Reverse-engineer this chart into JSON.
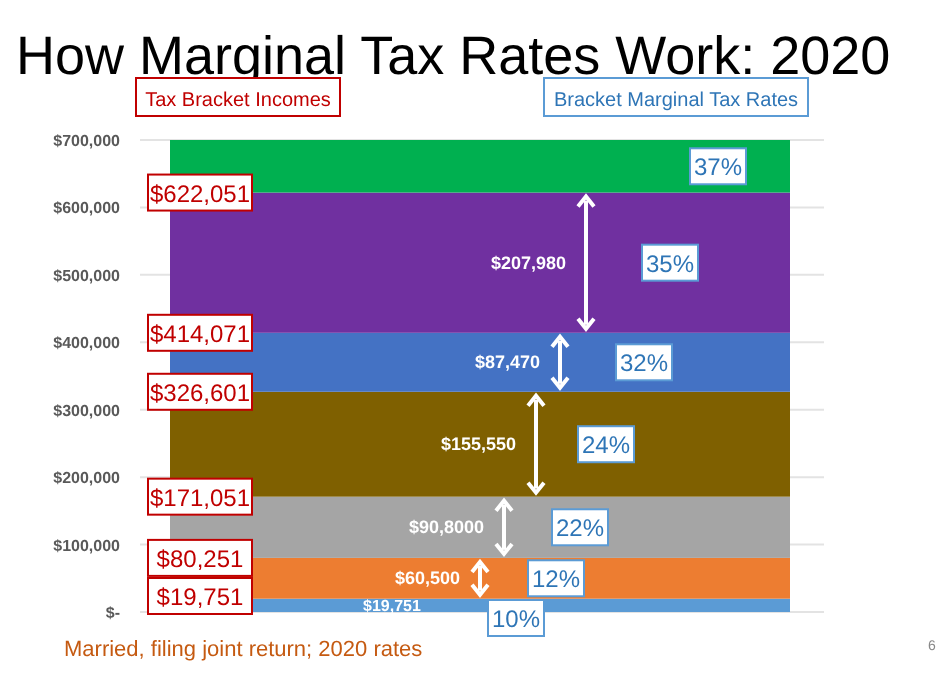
{
  "chart_data": {
    "type": "bar",
    "stacked": true,
    "title": "How Marginal Tax Rates Work: 2020",
    "categories": [
      null
    ],
    "series": [
      {
        "name": "10%",
        "color": "#5b9bd5",
        "values": [
          19751
        ],
        "value_labels": [
          "$19,751"
        ]
      },
      {
        "name": "12%",
        "color": "#ed7d31",
        "values": [
          60500
        ],
        "value_labels": [
          "$60,500"
        ]
      },
      {
        "name": "22%",
        "color": "#a5a5a5",
        "values": [
          90800
        ],
        "value_labels": [
          "$90,8000"
        ]
      },
      {
        "name": "24%",
        "color": "#7f6000",
        "values": [
          155550
        ],
        "value_labels": [
          "$155,550"
        ]
      },
      {
        "name": "32%",
        "color": "#4472c4",
        "values": [
          87470
        ],
        "value_labels": [
          "$87,470"
        ]
      },
      {
        "name": "35%",
        "color": "#7030a0",
        "values": [
          207980
        ],
        "value_labels": [
          "$207,980"
        ]
      },
      {
        "name": "37%",
        "color": "#00b050",
        "values": [
          77949
        ],
        "value_labels": [
          null
        ]
      }
    ],
    "ylim": [
      0,
      700000
    ],
    "yticks": [
      {
        "value": 0,
        "label": "$-"
      },
      {
        "value": 100000,
        "label": "$100,000"
      },
      {
        "value": 200000,
        "label": "$200,000"
      },
      {
        "value": 300000,
        "label": "$300,000"
      },
      {
        "value": 400000,
        "label": "$400,000"
      },
      {
        "value": 500000,
        "label": "$500,000"
      },
      {
        "value": 600000,
        "label": "$600,000"
      },
      {
        "value": 700000,
        "label": "$700,000"
      }
    ],
    "grid": "y",
    "annotations": [
      "Tax Bracket Incomes",
      "Bracket Marginal Tax Rates",
      "Married, filing joint return; 2020 rates",
      "6",
      {
        "text": "$19,751",
        "y": 19751
      },
      {
        "text": "$80,251",
        "y": 80251
      },
      {
        "text": "$171,051",
        "y": 171051
      },
      {
        "text": "$326,601",
        "y": 326601
      },
      {
        "text": "$414,071",
        "y": 414071
      },
      {
        "text": "$622,051",
        "y": 622051
      }
    ]
  }
}
